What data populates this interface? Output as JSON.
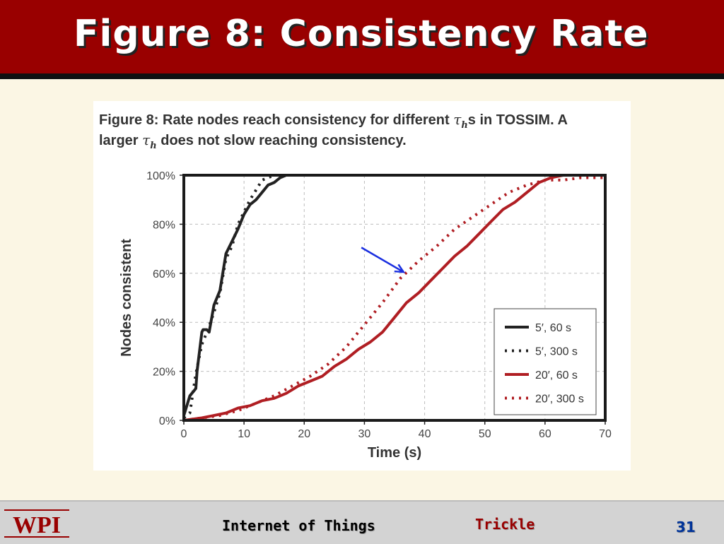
{
  "slide": {
    "title": "Figure 8: Consistency Rate",
    "footer_course": "Internet of Things",
    "footer_topic": "Trickle",
    "page_number": "31",
    "logo_text": "WPI"
  },
  "caption": {
    "line1_before": "Figure 8: Rate nodes reach consistency for different ",
    "line1_after": "s in TOSSIM. A",
    "line2_before": "larger ",
    "line2_after": " does not slow reaching consistency.",
    "tau_symbol": "τ",
    "tau_sub": "h"
  },
  "colors": {
    "title_bar": "#990000",
    "black_series": "#222222",
    "red_series": "#B01E23",
    "arrow": "#1A2FE0"
  },
  "chart_data": {
    "type": "line",
    "xlabel": "Time (s)",
    "ylabel": "Nodes consistent",
    "xlim": [
      0,
      70
    ],
    "ylim": [
      0,
      100
    ],
    "xticks": [
      "0",
      "10",
      "20",
      "30",
      "40",
      "50",
      "60",
      "70"
    ],
    "yticks": [
      "0%",
      "20%",
      "40%",
      "60%",
      "80%",
      "100%"
    ],
    "grid": true,
    "legend_position": "bottom-right",
    "annotation": {
      "type": "arrow",
      "from": [
        29.5,
        70.5
      ],
      "to": [
        36.5,
        60.5
      ]
    },
    "series": [
      {
        "name": "5′, 60 s",
        "style": "solid",
        "color": "black",
        "x": [
          0,
          0.5,
          1,
          2,
          2.2,
          3,
          3.2,
          3.8,
          4.2,
          5,
          6,
          7,
          8,
          9,
          10,
          11,
          12,
          13,
          14,
          15,
          16,
          17,
          18
        ],
        "y": [
          2,
          6,
          10,
          13,
          20,
          36,
          37,
          37,
          36,
          47,
          53,
          68,
          73,
          78,
          84,
          88,
          90,
          93,
          96,
          97,
          99,
          100,
          100
        ]
      },
      {
        "name": "5′, 300 s",
        "style": "dotted",
        "color": "black",
        "x": [
          0,
          1,
          2,
          3,
          4,
          5,
          6,
          7,
          8,
          9,
          10,
          11,
          12,
          13,
          14,
          15,
          16
        ],
        "y": [
          1,
          3,
          19,
          31,
          37,
          44,
          52,
          66,
          71,
          80,
          85,
          90,
          94,
          98,
          99,
          100,
          100
        ]
      },
      {
        "name": "20′, 60 s",
        "style": "solid",
        "color": "red",
        "x": [
          0,
          3,
          5,
          7,
          9,
          11,
          13,
          15,
          17,
          19,
          21,
          23,
          25,
          27,
          29,
          31,
          33,
          35,
          37,
          39,
          41,
          43,
          45,
          47,
          49,
          51,
          53,
          55,
          57,
          59,
          61,
          63,
          65,
          67,
          70
        ],
        "y": [
          0,
          1,
          2,
          3,
          5,
          6,
          8,
          9,
          11,
          14,
          16,
          18,
          22,
          25,
          29,
          32,
          36,
          42,
          48,
          52,
          57,
          62,
          67,
          71,
          76,
          81,
          86,
          89,
          93,
          97,
          99,
          100,
          100,
          100,
          100
        ]
      },
      {
        "name": "20′, 300 s",
        "style": "dotted",
        "color": "red",
        "x": [
          0,
          3,
          6,
          9,
          12,
          15,
          18,
          21,
          24,
          27,
          30,
          33,
          36,
          39,
          42,
          45,
          48,
          51,
          54,
          57,
          60,
          63,
          66,
          70
        ],
        "y": [
          0,
          1,
          2,
          4,
          7,
          10,
          14,
          18,
          23,
          30,
          39,
          48,
          58,
          65,
          71,
          78,
          83,
          88,
          93,
          96,
          98,
          98,
          99,
          99
        ]
      }
    ]
  }
}
